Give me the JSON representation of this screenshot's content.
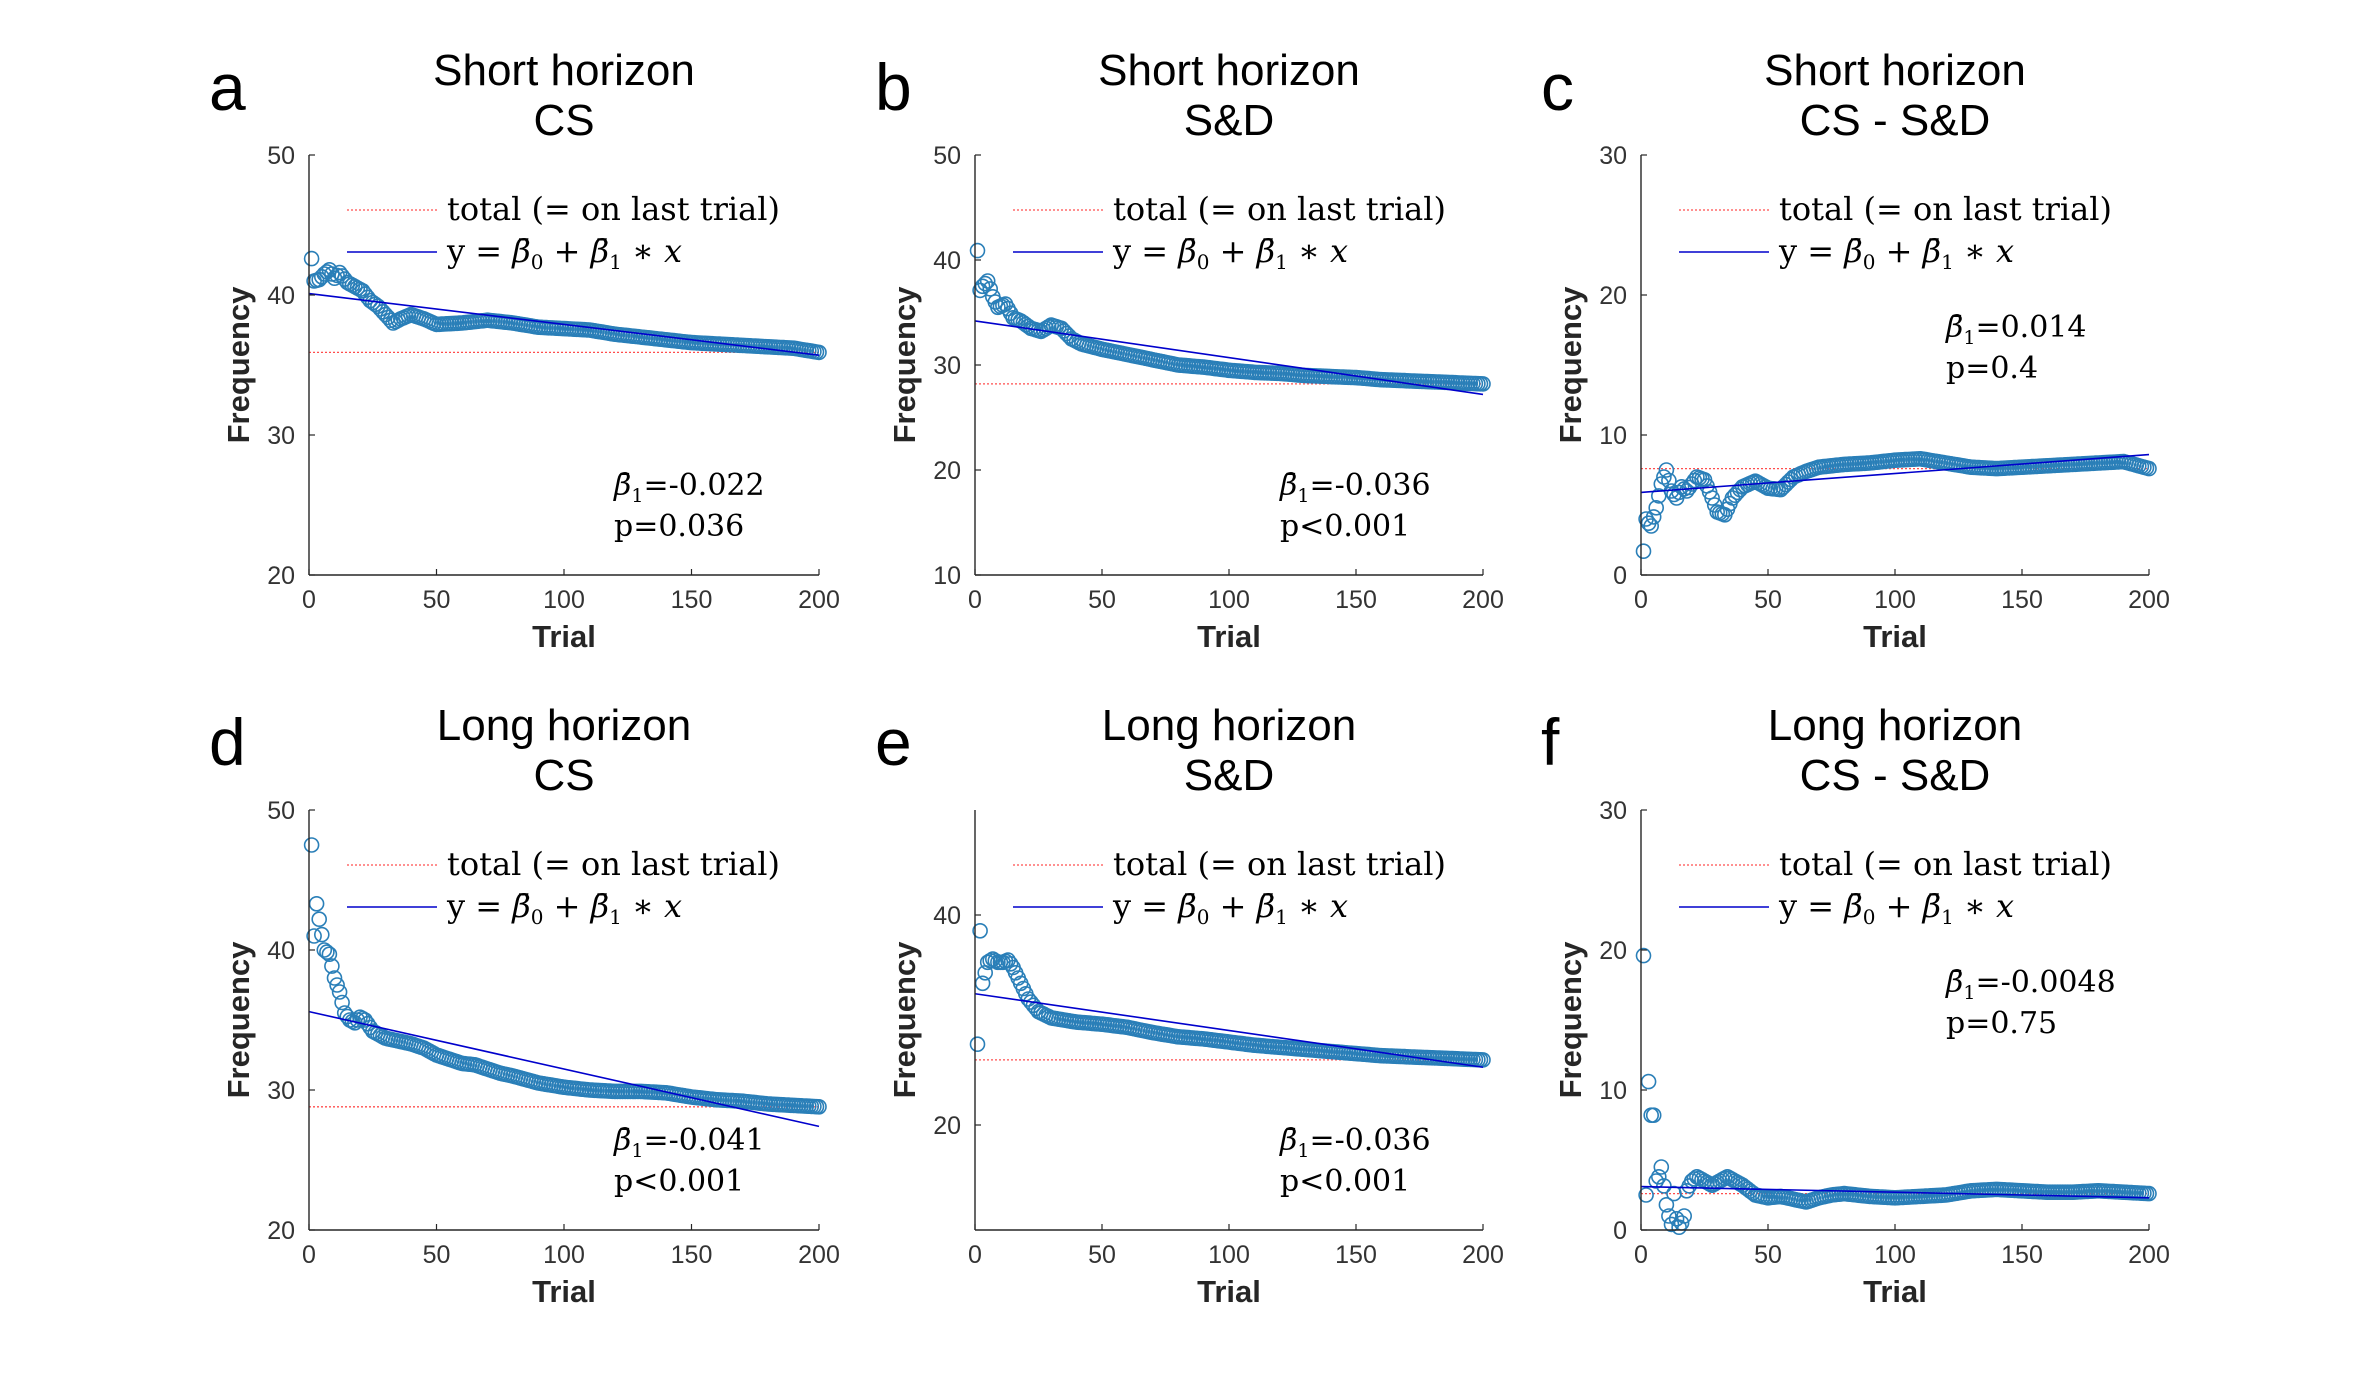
{
  "legend": {
    "total_label": "total (= on last trial)",
    "fit_label_prefix": "y = ",
    "fit_label_b0": "β̄",
    "fit_label_b0_sub": "0",
    "fit_label_mid": " + ",
    "fit_label_b1": "β̄",
    "fit_label_b1_sub": "1",
    "fit_label_suffix": " ∗ x"
  },
  "colors": {
    "points": "#2a7fb8",
    "fit_line": "#0000cc",
    "total_line": "#ff4d4d",
    "axis": "#262626"
  },
  "annotation_symbol": "β̄",
  "annotation_sub": "1",
  "chart_data": [
    {
      "letter": "a",
      "title_line1": "Short horizon",
      "title_line2": "CS",
      "type": "scatter",
      "xlabel": "Trial",
      "ylabel": "Frequency",
      "xlim": [
        0,
        200
      ],
      "ylim": [
        20,
        50
      ],
      "xticks": [
        0,
        50,
        100,
        150,
        200
      ],
      "yticks": [
        20,
        30,
        40,
        50
      ],
      "total": 35.9,
      "fit": [
        40.1,
        35.7
      ],
      "beta1": "=-0.022",
      "p": "p=0.036",
      "anchors": [
        [
          1,
          42.6
        ],
        [
          2,
          41
        ],
        [
          4,
          41.1
        ],
        [
          6,
          41.5
        ],
        [
          8,
          41.8
        ],
        [
          10,
          41.2
        ],
        [
          12,
          41.6
        ],
        [
          15,
          40.9
        ],
        [
          18,
          40.6
        ],
        [
          21,
          40.3
        ],
        [
          24,
          39.6
        ],
        [
          27,
          39.2
        ],
        [
          30,
          38.6
        ],
        [
          33,
          38
        ],
        [
          36,
          38.3
        ],
        [
          40,
          38.6
        ],
        [
          45,
          38.3
        ],
        [
          50,
          37.9
        ],
        [
          60,
          38
        ],
        [
          70,
          38.2
        ],
        [
          80,
          38
        ],
        [
          90,
          37.7
        ],
        [
          100,
          37.6
        ],
        [
          110,
          37.5
        ],
        [
          120,
          37.2
        ],
        [
          130,
          37
        ],
        [
          140,
          36.8
        ],
        [
          150,
          36.6
        ],
        [
          160,
          36.5
        ],
        [
          170,
          36.4
        ],
        [
          180,
          36.3
        ],
        [
          190,
          36.2
        ],
        [
          200,
          35.9
        ]
      ]
    },
    {
      "letter": "b",
      "title_line1": "Short horizon",
      "title_line2": "S&D",
      "type": "scatter",
      "xlabel": "Trial",
      "ylabel": "Frequency",
      "xlim": [
        0,
        200
      ],
      "ylim": [
        10,
        50
      ],
      "xticks": [
        0,
        50,
        100,
        150,
        200
      ],
      "yticks": [
        10,
        20,
        30,
        40,
        50
      ],
      "total": 28.2,
      "fit": [
        34.2,
        27.2
      ],
      "beta1": "=-0.036",
      "p": "p<0.001",
      "anchors": [
        [
          1,
          40.9
        ],
        [
          2,
          37.1
        ],
        [
          3,
          37.5
        ],
        [
          5,
          38
        ],
        [
          7,
          36.5
        ],
        [
          9,
          35.5
        ],
        [
          12,
          35.8
        ],
        [
          15,
          34.5
        ],
        [
          18,
          34.2
        ],
        [
          22,
          33.5
        ],
        [
          26,
          33.2
        ],
        [
          30,
          33.8
        ],
        [
          34,
          33.5
        ],
        [
          38,
          32.5
        ],
        [
          42,
          32
        ],
        [
          50,
          31.5
        ],
        [
          60,
          31
        ],
        [
          70,
          30.5
        ],
        [
          80,
          30
        ],
        [
          90,
          29.8
        ],
        [
          100,
          29.5
        ],
        [
          110,
          29.3
        ],
        [
          120,
          29.2
        ],
        [
          130,
          29
        ],
        [
          140,
          28.9
        ],
        [
          150,
          28.8
        ],
        [
          160,
          28.6
        ],
        [
          170,
          28.5
        ],
        [
          180,
          28.4
        ],
        [
          190,
          28.3
        ],
        [
          200,
          28.2
        ]
      ]
    },
    {
      "letter": "c",
      "title_line1": "Short horizon",
      "title_line2": "CS - S&D",
      "type": "scatter",
      "xlabel": "Trial",
      "ylabel": "Frequency",
      "xlim": [
        0,
        200
      ],
      "ylim": [
        0,
        30
      ],
      "xticks": [
        0,
        50,
        100,
        150,
        200
      ],
      "yticks": [
        0,
        10,
        20,
        30
      ],
      "total": 7.6,
      "fit": [
        5.9,
        8.6
      ],
      "beta1": "=0.014",
      "p": "p=0.4",
      "anchors": [
        [
          1,
          1.7
        ],
        [
          2,
          4
        ],
        [
          3,
          3.7
        ],
        [
          4,
          3.5
        ],
        [
          6,
          4.8
        ],
        [
          8,
          6.5
        ],
        [
          10,
          7.5
        ],
        [
          12,
          6
        ],
        [
          14,
          5.5
        ],
        [
          16,
          6.3
        ],
        [
          18,
          6
        ],
        [
          20,
          6.5
        ],
        [
          22,
          7
        ],
        [
          25,
          6.8
        ],
        [
          28,
          5.5
        ],
        [
          30,
          4.5
        ],
        [
          33,
          4.3
        ],
        [
          36,
          5.5
        ],
        [
          40,
          6.3
        ],
        [
          45,
          6.7
        ],
        [
          50,
          6.2
        ],
        [
          55,
          6.1
        ],
        [
          60,
          7
        ],
        [
          65,
          7.4
        ],
        [
          70,
          7.7
        ],
        [
          80,
          7.9
        ],
        [
          90,
          8
        ],
        [
          100,
          8.2
        ],
        [
          110,
          8.3
        ],
        [
          120,
          8
        ],
        [
          130,
          7.7
        ],
        [
          140,
          7.6
        ],
        [
          150,
          7.7
        ],
        [
          160,
          7.8
        ],
        [
          170,
          7.9
        ],
        [
          180,
          8
        ],
        [
          190,
          8.1
        ],
        [
          200,
          7.6
        ]
      ]
    },
    {
      "letter": "d",
      "title_line1": "Long horizon",
      "title_line2": "CS",
      "type": "scatter",
      "xlabel": "Trial",
      "ylabel": "Frequency",
      "xlim": [
        0,
        200
      ],
      "ylim": [
        20,
        50
      ],
      "xticks": [
        0,
        50,
        100,
        150,
        200
      ],
      "yticks": [
        20,
        30,
        40,
        50
      ],
      "total": 28.8,
      "fit": [
        35.6,
        27.4
      ],
      "beta1": "=-0.041",
      "p": "p<0.001",
      "anchors": [
        [
          1,
          47.5
        ],
        [
          2,
          41
        ],
        [
          3,
          43.3
        ],
        [
          4,
          42.2
        ],
        [
          6,
          40
        ],
        [
          8,
          39.7
        ],
        [
          10,
          38
        ],
        [
          12,
          37
        ],
        [
          14,
          35.5
        ],
        [
          16,
          35
        ],
        [
          18,
          34.8
        ],
        [
          20,
          35.2
        ],
        [
          22,
          35
        ],
        [
          25,
          34.2
        ],
        [
          30,
          33.7
        ],
        [
          35,
          33.5
        ],
        [
          40,
          33.3
        ],
        [
          45,
          33
        ],
        [
          50,
          32.5
        ],
        [
          55,
          32.2
        ],
        [
          60,
          31.9
        ],
        [
          65,
          31.8
        ],
        [
          70,
          31.5
        ],
        [
          75,
          31.2
        ],
        [
          80,
          31
        ],
        [
          90,
          30.5
        ],
        [
          100,
          30.2
        ],
        [
          110,
          30
        ],
        [
          120,
          29.9
        ],
        [
          130,
          29.9
        ],
        [
          140,
          29.8
        ],
        [
          150,
          29.5
        ],
        [
          160,
          29.3
        ],
        [
          170,
          29.2
        ],
        [
          180,
          29
        ],
        [
          190,
          28.9
        ],
        [
          200,
          28.8
        ]
      ]
    },
    {
      "letter": "e",
      "title_line1": "Long horizon",
      "title_line2": "S&D",
      "type": "scatter",
      "xlabel": "Trial",
      "ylabel": "Frequency",
      "xlim": [
        0,
        200
      ],
      "ylim": [
        10,
        50
      ],
      "xticks": [
        0,
        50,
        100,
        150,
        200
      ],
      "yticks": [
        20,
        40
      ],
      "total": 26.2,
      "fit": [
        32.5,
        25.5
      ],
      "beta1": "=-0.036",
      "p": "p<0.001",
      "anchors": [
        [
          1,
          27.7
        ],
        [
          2,
          38.5
        ],
        [
          3,
          33.5
        ],
        [
          4,
          34.5
        ],
        [
          5,
          35.5
        ],
        [
          7,
          35.8
        ],
        [
          9,
          35.5
        ],
        [
          11,
          35.5
        ],
        [
          13,
          35.7
        ],
        [
          15,
          35
        ],
        [
          17,
          34
        ],
        [
          19,
          33
        ],
        [
          21,
          32
        ],
        [
          25,
          30.8
        ],
        [
          30,
          30.2
        ],
        [
          35,
          30
        ],
        [
          40,
          29.8
        ],
        [
          45,
          29.7
        ],
        [
          50,
          29.6
        ],
        [
          60,
          29.3
        ],
        [
          70,
          28.8
        ],
        [
          80,
          28.4
        ],
        [
          90,
          28.2
        ],
        [
          100,
          27.9
        ],
        [
          110,
          27.6
        ],
        [
          120,
          27.4
        ],
        [
          130,
          27.2
        ],
        [
          140,
          27
        ],
        [
          150,
          26.8
        ],
        [
          160,
          26.6
        ],
        [
          170,
          26.5
        ],
        [
          180,
          26.4
        ],
        [
          190,
          26.3
        ],
        [
          200,
          26.2
        ]
      ]
    },
    {
      "letter": "f",
      "title_line1": "Long horizon",
      "title_line2": "CS - S&D",
      "type": "scatter",
      "xlabel": "Trial",
      "ylabel": "Frequency",
      "xlim": [
        0,
        200
      ],
      "ylim": [
        0,
        30
      ],
      "xticks": [
        0,
        50,
        100,
        150,
        200
      ],
      "yticks": [
        0,
        10,
        20,
        30
      ],
      "total": 2.6,
      "fit": [
        3.1,
        2.3
      ],
      "beta1": "=-0.0048",
      "p": "p=0.75",
      "anchors": [
        [
          1,
          19.6
        ],
        [
          2,
          2.5
        ],
        [
          3,
          10.6
        ],
        [
          4,
          8.2
        ],
        [
          5,
          8.2
        ],
        [
          6,
          3.5
        ],
        [
          7,
          3.8
        ],
        [
          8,
          4.5
        ],
        [
          10,
          1.8
        ],
        [
          11,
          1
        ],
        [
          12,
          0.4
        ],
        [
          13,
          2.6
        ],
        [
          14,
          0.8
        ],
        [
          15,
          0.2
        ],
        [
          16,
          0.5
        ],
        [
          17,
          1
        ],
        [
          18,
          2.8
        ],
        [
          20,
          3.5
        ],
        [
          22,
          3.8
        ],
        [
          25,
          3.5
        ],
        [
          28,
          3.2
        ],
        [
          31,
          3.5
        ],
        [
          34,
          3.8
        ],
        [
          37,
          3.5
        ],
        [
          40,
          3.2
        ],
        [
          45,
          2.5
        ],
        [
          50,
          2.3
        ],
        [
          55,
          2.4
        ],
        [
          60,
          2.2
        ],
        [
          65,
          2
        ],
        [
          70,
          2.3
        ],
        [
          75,
          2.5
        ],
        [
          80,
          2.6
        ],
        [
          90,
          2.4
        ],
        [
          100,
          2.3
        ],
        [
          110,
          2.4
        ],
        [
          120,
          2.5
        ],
        [
          130,
          2.8
        ],
        [
          140,
          2.9
        ],
        [
          150,
          2.8
        ],
        [
          160,
          2.7
        ],
        [
          170,
          2.7
        ],
        [
          180,
          2.8
        ],
        [
          190,
          2.7
        ],
        [
          200,
          2.6
        ]
      ]
    }
  ]
}
